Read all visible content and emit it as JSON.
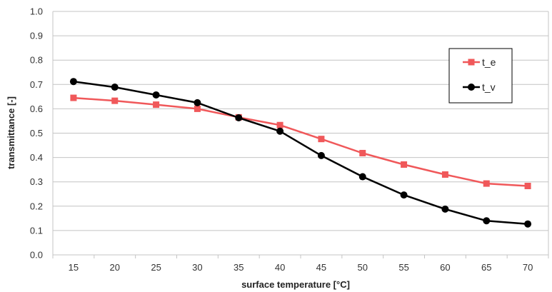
{
  "chart_data": {
    "type": "line",
    "title": "",
    "xlabel": "surface temperature [°C]",
    "ylabel": "transmittance [-]",
    "categories": [
      "15",
      "20",
      "25",
      "30",
      "35",
      "40",
      "45",
      "50",
      "55",
      "60",
      "65",
      "70"
    ],
    "ylim": [
      0,
      1
    ],
    "yticks": [
      "0.0",
      "0.1",
      "0.2",
      "0.3",
      "0.4",
      "0.5",
      "0.6",
      "0.7",
      "0.8",
      "0.9",
      "1.0"
    ],
    "grid": "horizontal",
    "legend_position": "right",
    "series": [
      {
        "name": "t_e",
        "marker": "square",
        "color": "#f0585a",
        "values": [
          0.645,
          0.633,
          0.617,
          0.6,
          0.565,
          0.533,
          0.476,
          0.418,
          0.371,
          0.33,
          0.293,
          0.283
        ]
      },
      {
        "name": "t_v",
        "marker": "circle",
        "color": "#000000",
        "values": [
          0.712,
          0.689,
          0.657,
          0.625,
          0.563,
          0.508,
          0.408,
          0.321,
          0.246,
          0.188,
          0.14,
          0.127
        ]
      }
    ]
  }
}
